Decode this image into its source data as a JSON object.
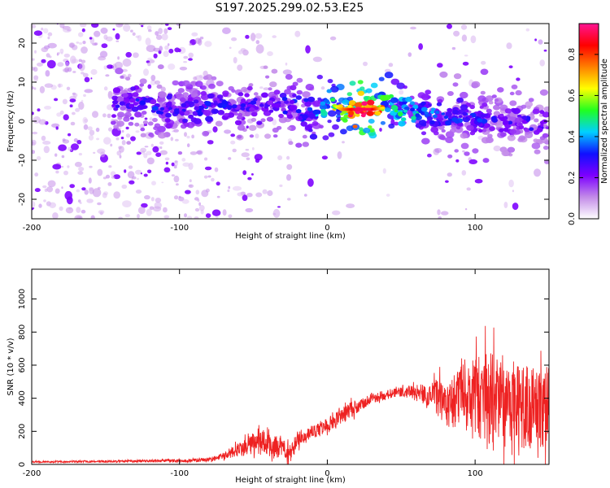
{
  "page": {
    "title": "S197.2025.299.02.53.E25"
  },
  "colors": {
    "snr_line": "#ee2222",
    "spectrogram_ridge": "#ff1010",
    "colormap": [
      "#ffffff",
      "#c38be8",
      "#7d00ff",
      "#1010ff",
      "#00d0ff",
      "#20ff20",
      "#ffff00",
      "#ff8000",
      "#ff0000",
      "#ff1493"
    ]
  },
  "chart_data": [
    {
      "type": "heatmap",
      "title": "S197.2025.299.02.53.E25",
      "xlabel": "Height of straight line (km)",
      "ylabel": "Frequency (Hz)",
      "xlim": [
        -200,
        150
      ],
      "ylim": [
        -25,
        25
      ],
      "xticks": [
        "-200",
        "-100",
        "0",
        "100"
      ],
      "xtick_values": [
        -200,
        -100,
        0,
        100
      ],
      "yticks": [
        "20",
        "10",
        "0",
        "-10",
        "-20"
      ],
      "ytick_values": [
        20,
        10,
        0,
        -10,
        -20
      ],
      "ridge": {
        "description": "dominant frequency band",
        "x": [
          -140,
          -120,
          -100,
          -80,
          -60,
          -40,
          -20,
          -15,
          -10,
          -5,
          0,
          5,
          10,
          20,
          30,
          40,
          50,
          60,
          80,
          100,
          120,
          140,
          150
        ],
        "y": [
          5,
          4,
          3,
          4,
          4,
          4,
          3.5,
          1,
          2,
          3,
          5,
          4,
          3,
          3,
          3,
          3.5,
          2.5,
          2,
          1,
          1,
          0,
          -0.5,
          -1
        ],
        "amplitude": [
          0.25,
          0.3,
          0.3,
          0.3,
          0.25,
          0.25,
          0.3,
          0.35,
          0.3,
          0.45,
          0.5,
          0.6,
          0.75,
          0.95,
          0.95,
          0.6,
          0.45,
          0.4,
          0.3,
          0.3,
          0.25,
          0.25,
          0.2
        ]
      },
      "colorbar": {
        "label": "Normalized spectral amplitude",
        "range": [
          0,
          0.95
        ],
        "ticks": [
          "0.0",
          "0.2",
          "0.4",
          "0.6",
          "0.8"
        ],
        "tick_values": [
          0.0,
          0.2,
          0.4,
          0.6,
          0.8
        ]
      }
    },
    {
      "type": "line",
      "xlabel": "Height of straight line (km)",
      "ylabel": "SNR (10 * v/v)",
      "xlim": [
        -200,
        150
      ],
      "ylim": [
        0,
        1180
      ],
      "xticks": [
        "-200",
        "-100",
        "0",
        "100"
      ],
      "xtick_values": [
        -200,
        -100,
        0,
        100
      ],
      "yticks": [
        "0",
        "200",
        "400",
        "600",
        "800",
        "1000"
      ],
      "ytick_values": [
        0,
        200,
        400,
        600,
        800,
        1000
      ],
      "series": [
        {
          "name": "SNR",
          "x": [
            -200,
            -150,
            -100,
            -80,
            -70,
            -60,
            -50,
            -40,
            -30,
            -25,
            -20,
            -10,
            0,
            10,
            20,
            30,
            40,
            50,
            60,
            70,
            80,
            90,
            100,
            110,
            120,
            130,
            140,
            150
          ],
          "y": [
            15,
            18,
            22,
            28,
            50,
            90,
            130,
            140,
            90,
            60,
            160,
            200,
            230,
            300,
            350,
            400,
            420,
            440,
            430,
            420,
            390,
            400,
            400,
            380,
            360,
            330,
            340,
            360
          ],
          "noise_amplitude": [
            5,
            6,
            10,
            12,
            20,
            40,
            70,
            80,
            60,
            60,
            60,
            40,
            50,
            60,
            40,
            30,
            30,
            30,
            50,
            70,
            160,
            200,
            260,
            300,
            300,
            280,
            250,
            250
          ]
        }
      ]
    }
  ]
}
